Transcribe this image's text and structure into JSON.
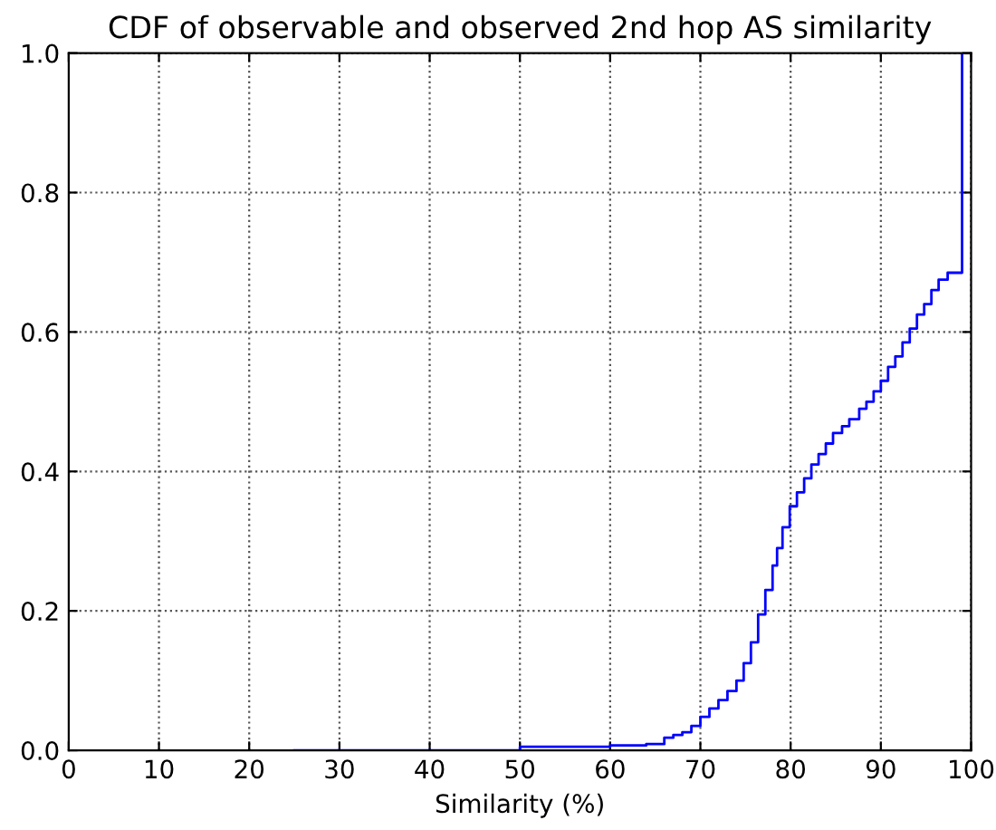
{
  "chart_data": {
    "type": "step",
    "title": "CDF of observable and observed 2nd hop AS similarity",
    "xlabel": "Similarity (%)",
    "series": [
      {
        "color": "#0000ff",
        "x": [
          25,
          50,
          60,
          64,
          66,
          67,
          68,
          69,
          70,
          71,
          72,
          73,
          74,
          74.8,
          75.6,
          76.4,
          77.2,
          78,
          78.5,
          79.1,
          79.9,
          80.7,
          81.5,
          82.3,
          83.1,
          83.9,
          84.7,
          85.7,
          86.5,
          87.6,
          88.4,
          89.2,
          90.0,
          90.8,
          91.6,
          92.4,
          93.2,
          94.0,
          94.8,
          95.6,
          96.4,
          97.4,
          99.0
        ],
        "values": [
          0,
          0.005,
          0.007,
          0.009,
          0.018,
          0.022,
          0.026,
          0.035,
          0.048,
          0.06,
          0.072,
          0.085,
          0.1,
          0.125,
          0.155,
          0.195,
          0.23,
          0.265,
          0.29,
          0.32,
          0.35,
          0.37,
          0.39,
          0.41,
          0.425,
          0.44,
          0.455,
          0.465,
          0.475,
          0.49,
          0.5,
          0.515,
          0.53,
          0.55,
          0.565,
          0.585,
          0.605,
          0.625,
          0.64,
          0.66,
          0.675,
          0.685,
          1.0
        ]
      }
    ],
    "xlim": [
      0,
      100
    ],
    "xticks": [
      0,
      10,
      20,
      30,
      40,
      50,
      60,
      70,
      80,
      90,
      100
    ],
    "ylim": [
      0,
      1.0
    ],
    "yticks": [
      {
        "value": 0,
        "label": "0.0"
      },
      {
        "value": 0.2,
        "label": "0.2"
      },
      {
        "value": 0.4,
        "label": "0.4"
      },
      {
        "value": 0.6,
        "label": "0.6"
      },
      {
        "value": 0.8,
        "label": "0.8"
      },
      {
        "value": 1.0,
        "label": "1.0"
      }
    ],
    "grid": true,
    "line_style": "solid"
  }
}
